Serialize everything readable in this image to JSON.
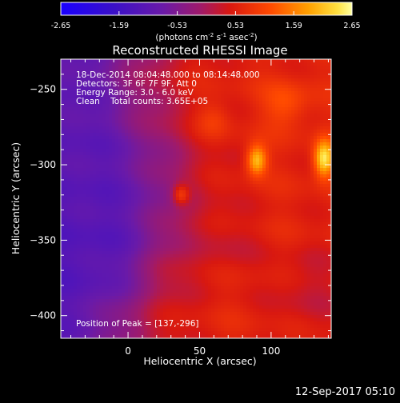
{
  "chart_data": {
    "type": "heatmap",
    "title": "Reconstructed RHESSI Image",
    "xlabel": "Heliocentric X (arcsec)",
    "ylabel": "Heliocentric Y (arcsec)",
    "xlim": [
      -47,
      142
    ],
    "ylim": [
      -415,
      -230
    ],
    "x_ticks": [
      0,
      50,
      100
    ],
    "y_ticks": [
      -250,
      -300,
      -350,
      -400
    ],
    "colorbar": {
      "range": [
        -2.65,
        2.65
      ],
      "ticks": [
        "-2.65",
        "-1.59",
        "-0.53",
        "0.53",
        "1.59",
        "2.65"
      ],
      "label_parts": [
        "(photons cm",
        "-2",
        " s",
        "-1",
        " asec",
        "-2",
        ")"
      ]
    },
    "info_lines": [
      "18-Dec-2014 08:04:48.000 to 08:14:48.000",
      "Detectors: 3F 6F 7F 9F, Att 0",
      "Energy Range: 3.0 - 6.0 keV",
      "Clean    Total counts: 3.65E+05"
    ],
    "peak_text": "Position of Peak = [137,-296]",
    "sources": [
      {
        "x": 137,
        "y": -296,
        "peak": 2.65
      },
      {
        "x": 90,
        "y": -297,
        "peak": 2.2
      },
      {
        "x": 37,
        "y": -320,
        "peak": 1.7
      }
    ],
    "background_field": "purple-to-red gradient across X, values approx -1.2 at left to 0.8 at right"
  },
  "footer": {
    "timestamp": "12-Sep-2017 05:10"
  }
}
